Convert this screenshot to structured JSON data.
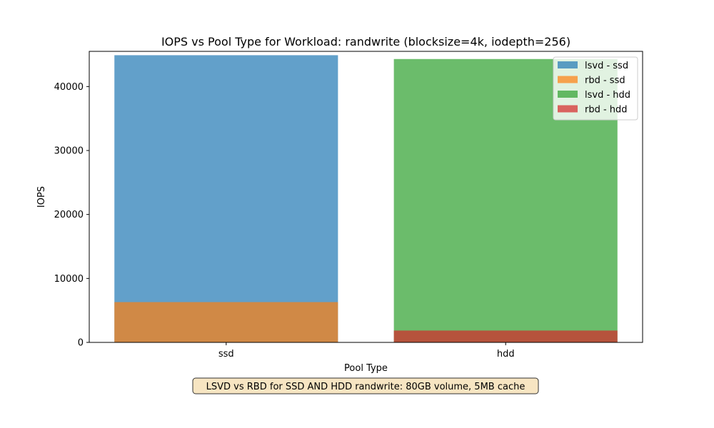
{
  "chart_data": {
    "type": "bar",
    "title": "IOPS vs Pool Type for Workload: randwrite (blocksize=4k, iodepth=256)",
    "xlabel": "Pool Type",
    "ylabel": "IOPS",
    "categories": [
      "ssd",
      "hdd"
    ],
    "ylim": [
      0,
      45500
    ],
    "yticks": [
      0,
      10000,
      20000,
      30000,
      40000
    ],
    "grid": false,
    "legend_position": "top-right",
    "series": [
      {
        "name": "lsvd - ssd",
        "category": "ssd",
        "value": 44900,
        "color": "#1f77b4"
      },
      {
        "name": "rbd - ssd",
        "category": "ssd",
        "value": 6300,
        "color": "#ff7f0e"
      },
      {
        "name": "lsvd - hdd",
        "category": "hdd",
        "value": 44300,
        "color": "#2ca02c"
      },
      {
        "name": "rbd - hdd",
        "category": "hdd",
        "value": 1850,
        "color": "#d62728"
      }
    ],
    "annotation": "LSVD vs RBD for SSD AND HDD randwrite: 80GB volume, 5MB cache"
  }
}
